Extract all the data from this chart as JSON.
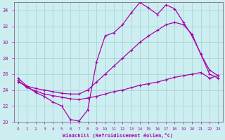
{
  "xlabel": "Windchill (Refroidissement éolien,°C)",
  "bg_color": "#cceef0",
  "grid_color": "#aad4d8",
  "line_color": "#aa00aa",
  "spine_color": "#886688",
  "xlim": [
    -0.5,
    23.5
  ],
  "ylim": [
    20,
    35
  ],
  "xticks": [
    0,
    1,
    2,
    3,
    4,
    5,
    6,
    7,
    8,
    9,
    10,
    11,
    12,
    13,
    14,
    15,
    16,
    17,
    18,
    19,
    20,
    21,
    22,
    23
  ],
  "yticks": [
    20,
    22,
    24,
    26,
    28,
    30,
    32,
    34
  ],
  "curve1_x": [
    0,
    1,
    2,
    3,
    4,
    5,
    6,
    7,
    8,
    9,
    10,
    11,
    12,
    13,
    14,
    15,
    16,
    17,
    18,
    19,
    20,
    21,
    22,
    23
  ],
  "curve1_y": [
    25.5,
    24.5,
    23.7,
    23.2,
    22.5,
    22.0,
    20.3,
    20.1,
    21.5,
    27.5,
    30.8,
    31.2,
    32.2,
    33.7,
    35.0,
    34.3,
    33.5,
    34.7,
    34.2,
    32.5,
    30.8,
    28.5,
    26.5,
    25.8
  ],
  "curve2_x": [
    0,
    1,
    2,
    3,
    4,
    5,
    6,
    7,
    8,
    9,
    10,
    11,
    12,
    13,
    14,
    15,
    16,
    17,
    18,
    19,
    20,
    21,
    22,
    23
  ],
  "curve2_y": [
    25.0,
    24.5,
    24.2,
    24.0,
    23.8,
    23.6,
    23.5,
    23.5,
    24.0,
    25.0,
    26.0,
    27.0,
    28.0,
    29.0,
    30.0,
    30.8,
    31.5,
    32.2,
    32.5,
    32.2,
    31.0,
    28.5,
    26.0,
    25.5
  ],
  "curve3_x": [
    0,
    1,
    2,
    3,
    4,
    5,
    6,
    7,
    8,
    9,
    10,
    11,
    12,
    13,
    14,
    15,
    16,
    17,
    18,
    19,
    20,
    21,
    22,
    23
  ],
  "curve3_y": [
    25.2,
    24.3,
    23.9,
    23.5,
    23.3,
    23.1,
    22.9,
    22.8,
    23.0,
    23.2,
    23.5,
    23.8,
    24.0,
    24.3,
    24.6,
    24.8,
    25.0,
    25.3,
    25.6,
    25.8,
    26.0,
    26.2,
    25.5,
    25.8
  ]
}
